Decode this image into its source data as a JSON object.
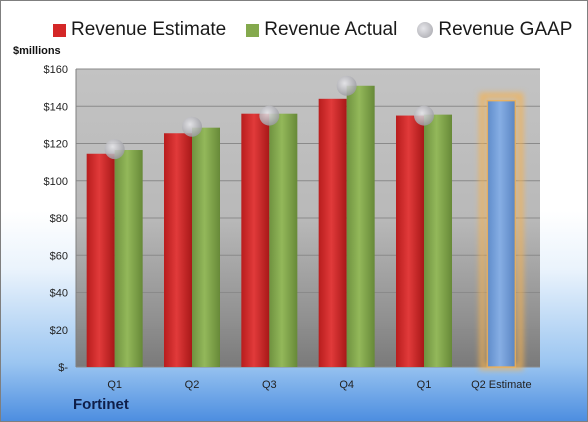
{
  "chart_data": {
    "type": "bar",
    "units_label": "$millions",
    "company": "Fortinet",
    "categories": [
      "Q1",
      "Q2",
      "Q3",
      "Q4",
      "Q1",
      "Q2 Estimate"
    ],
    "series": [
      {
        "name": "Revenue Estimate",
        "values": [
          114.5,
          125.5,
          136,
          144,
          135,
          null
        ],
        "color": "#d42727"
      },
      {
        "name": "Revenue Actual",
        "values": [
          116.5,
          128.5,
          136,
          151,
          135.5,
          null
        ],
        "color": "#84a94d"
      },
      {
        "name": "Revenue GAAP",
        "type": "scatter",
        "values": [
          117,
          129,
          135,
          151,
          135,
          null
        ],
        "color": "#b4b4b8"
      }
    ],
    "estimate_bar": {
      "category_index": 5,
      "value": 143,
      "color": "#6f9ad6",
      "glow_color": "#f6b24f"
    },
    "yticks": [
      "$-",
      "$20",
      "$40",
      "$60",
      "$80",
      "$100",
      "$120",
      "$140",
      "$160"
    ],
    "ylim": [
      0,
      160
    ],
    "legend_position": "top",
    "grid": true
  }
}
